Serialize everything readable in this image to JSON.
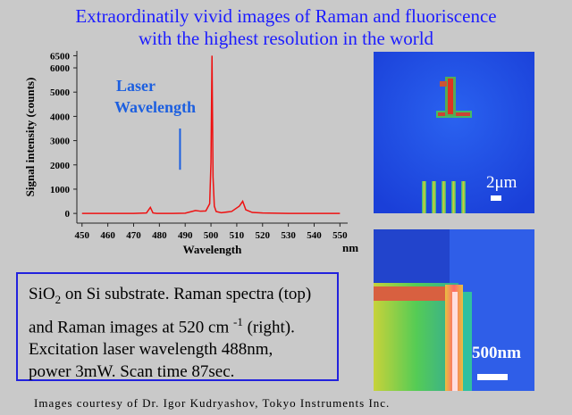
{
  "header": {
    "title_lines": [
      "Extraordinatily vivid images of Raman and fluoriscence",
      "with the highest resolution in the world"
    ]
  },
  "chart_data": {
    "type": "line",
    "y_label": "Signal intensity (counts)",
    "x_label": "Wavelength",
    "x_unit": "nm",
    "xlim": [
      448,
      553
    ],
    "xticks": [
      450,
      460,
      470,
      480,
      490,
      500,
      510,
      520,
      530,
      540,
      550
    ],
    "ylim": [
      -400,
      6700
    ],
    "yticks": [
      0,
      1000,
      2000,
      3000,
      4000,
      5000,
      6000,
      6500
    ],
    "annotation": {
      "lines": [
        "Laser",
        "Wavelength"
      ],
      "color": "#1c5fe0",
      "x": 488,
      "y": [
        1800,
        3500
      ]
    },
    "series": [
      {
        "color": "#ee1111",
        "x": [
          450,
          460,
          470,
          475,
          476.5,
          477.5,
          479,
          485,
          490,
          494,
          496,
          498,
          499.5,
          500,
          500.4,
          500.8,
          501.3,
          502,
          504,
          508,
          511,
          512.3,
          513.5,
          516,
          520,
          530,
          540,
          550
        ],
        "values": [
          0,
          0,
          0,
          20,
          250,
          20,
          0,
          0,
          10,
          120,
          90,
          100,
          400,
          2100,
          6500,
          1500,
          300,
          80,
          30,
          80,
          300,
          500,
          150,
          40,
          20,
          0,
          0,
          0
        ]
      }
    ]
  },
  "images": [
    {
      "scale": "2μm"
    },
    {
      "scale": "500nm"
    }
  ],
  "caption": {
    "lines": [
      [
        "SiO",
        "2",
        " on Si substrate. Raman spectra (top)"
      ],
      [
        "and Raman images at 520 cm ",
        "-1",
        " (right)."
      ],
      [
        "Excitation laser wavelength 488nm,"
      ],
      [
        "power 3mW. Scan time 87sec."
      ]
    ]
  },
  "footer": {
    "credit": "Images courtesy of Dr. Igor Kudryashov, Tokyo Instruments Inc."
  }
}
